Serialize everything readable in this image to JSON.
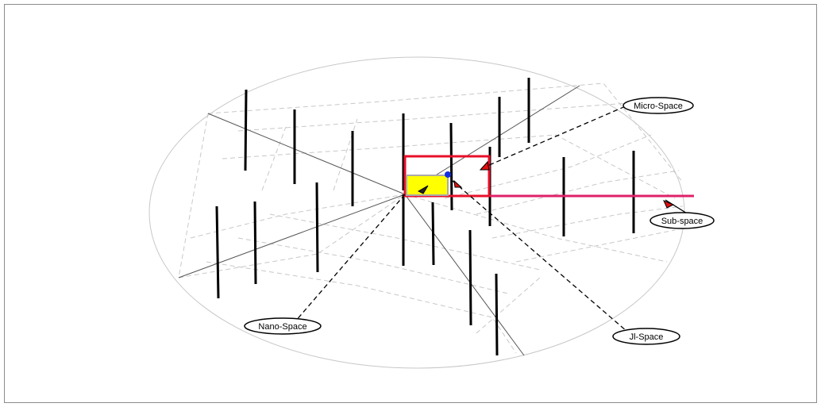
{
  "labels": {
    "micro_space": "Micro-Space",
    "sub_space": "Sub-space",
    "nano_space": "Nano-Space",
    "jl_space": "Jl-Space"
  },
  "colors": {
    "frame": "#8c8c8c",
    "ellipse": "#c8c8c8",
    "grid": "#c8c8c8",
    "axis": "#555555",
    "post": "#000000",
    "highlight_box": "#e8102a",
    "sub_line": "#e0206a",
    "fill": "#ffff00",
    "dot": "#1030e0",
    "marker": "#e01010"
  }
}
